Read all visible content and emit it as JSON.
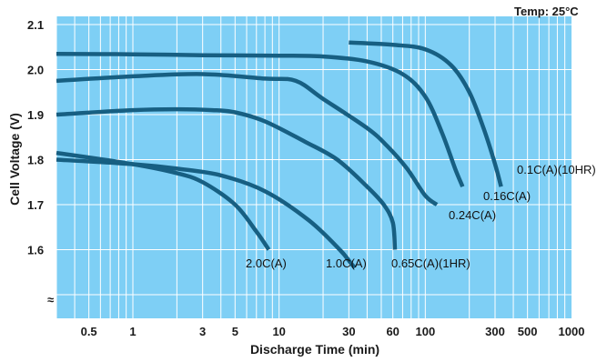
{
  "chart_data": {
    "type": "line",
    "title": "",
    "note": "Temp: 25°C",
    "xlabel": "Discharge Time (min)",
    "ylabel": "Cell Voltage (V)",
    "x_scale": "log",
    "xlim": [
      0.3,
      1000
    ],
    "ylim": [
      1.5,
      2.1
    ],
    "grid": true,
    "x_ticks": [
      0.5,
      1,
      3,
      5,
      10,
      30,
      60,
      100,
      300,
      500,
      1000
    ],
    "x_tick_labels": [
      "0.5",
      "1",
      "3",
      "5",
      "10",
      "30",
      "60",
      "100",
      "300",
      "500",
      "1000"
    ],
    "y_ticks": [
      1.6,
      1.7,
      1.8,
      1.9,
      2.0,
      2.1
    ],
    "y_tick_labels": [
      "1.6",
      "1.7",
      "1.8",
      "1.9",
      "2.0",
      "2.1"
    ],
    "axis_break_symbol": "≈",
    "series": [
      {
        "name": "0.1C(A)(10HR)",
        "x": [
          30,
          60,
          100,
          150,
          200,
          250,
          300,
          330
        ],
        "y": [
          2.06,
          2.055,
          2.045,
          2.01,
          1.95,
          1.87,
          1.79,
          1.74
        ]
      },
      {
        "name": "0.16C(A)",
        "x": [
          0.3,
          1,
          3,
          10,
          20,
          40,
          70,
          100,
          130,
          160,
          180
        ],
        "y": [
          2.035,
          2.034,
          2.032,
          2.031,
          2.029,
          2.018,
          1.99,
          1.94,
          1.86,
          1.78,
          1.74
        ]
      },
      {
        "name": "0.24C(A)",
        "x": [
          0.3,
          1,
          3,
          8,
          13,
          20,
          40,
          55,
          75,
          100,
          120
        ],
        "y": [
          1.975,
          1.985,
          1.99,
          1.98,
          1.975,
          1.935,
          1.87,
          1.83,
          1.78,
          1.72,
          1.7
        ]
      },
      {
        "name": "0.65C(A)(1HR)",
        "x": [
          0.3,
          1,
          2,
          3.5,
          5,
          8,
          15,
          25,
          40,
          52,
          60,
          62
        ],
        "y": [
          1.9,
          1.91,
          1.912,
          1.91,
          1.905,
          1.885,
          1.84,
          1.8,
          1.74,
          1.7,
          1.66,
          1.6
        ]
      },
      {
        "name": "1.0C(A)",
        "x": [
          0.3,
          1,
          2,
          4,
          8,
          16,
          26,
          31,
          33
        ],
        "y": [
          1.8,
          1.79,
          1.78,
          1.765,
          1.73,
          1.665,
          1.6,
          1.57,
          1.56
        ]
      },
      {
        "name": "2.0C(A)",
        "x": [
          0.3,
          1,
          2,
          3,
          5,
          7,
          8.5
        ],
        "y": [
          1.815,
          1.79,
          1.77,
          1.75,
          1.7,
          1.64,
          1.6
        ]
      }
    ]
  }
}
